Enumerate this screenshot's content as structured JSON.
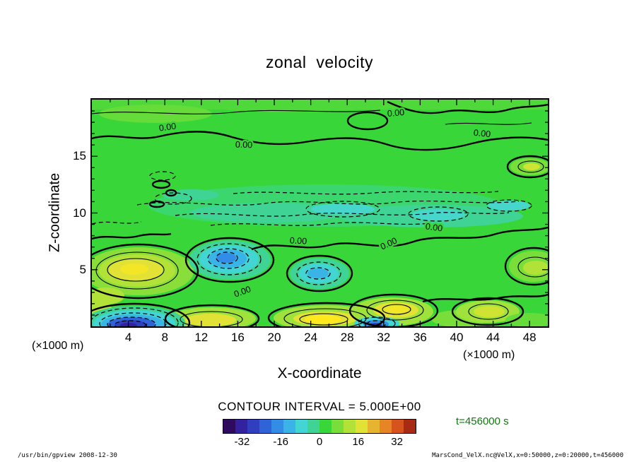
{
  "title": "zonal velocity",
  "plot": {
    "zero_label": "0.00"
  },
  "axes": {
    "x": {
      "label": "X-coordinate",
      "unit": "(×1000 m)",
      "ticks": [
        "4",
        "8",
        "12",
        "16",
        "20",
        "24",
        "28",
        "32",
        "36",
        "40",
        "44",
        "48"
      ]
    },
    "y": {
      "label": "Z-coordinate",
      "unit": "(×1000 m)",
      "ticks": [
        "5",
        "10",
        "15"
      ]
    }
  },
  "annotations": {
    "contour_interval": "CONTOUR INTERVAL = 5.000E+00",
    "time": "t=456000 s"
  },
  "colorbar": {
    "tick_labels": [
      "-32",
      "-16",
      "0",
      "16",
      "32"
    ],
    "min": -40,
    "max": 40,
    "colors": [
      "#2e0b5e",
      "#33219e",
      "#2f3fc0",
      "#2f63d8",
      "#338ce6",
      "#3ab4e6",
      "#43d4d4",
      "#3fd495",
      "#38d638",
      "#7ade3a",
      "#b2e238",
      "#e2e236",
      "#e6b42e",
      "#e68426",
      "#d6531d",
      "#a62a14"
    ]
  },
  "footer": {
    "left": "/usr/bin/gpview  2008-12-30",
    "right": "MarsCond_VelX.nc@VelX,x=0:50000,z=0:20000,t=456000"
  },
  "palette": {
    "g0": "#38d638",
    "g1": "#4ed83a",
    "g2": "#66dc3a",
    "g3": "#7ade3a",
    "g4": "#8ade3a",
    "g5": "#9fe23c",
    "g6": "#b2e238",
    "y1": "#cfe332",
    "y2": "#e2e236",
    "y3": "#f2e626",
    "y4": "#ffe81e",
    "t1": "#3bd66e",
    "t2": "#3fd495",
    "c1": "#46d6cc",
    "c2": "#43d4d4",
    "b1": "#3ab4e6",
    "b2": "#338ce6",
    "b3": "#2f63d8",
    "b4": "#2f3fc0",
    "b5": "#33219e"
  },
  "chart_data": {
    "type": "contour",
    "title": "zonal velocity",
    "xlabel": "X-coordinate",
    "ylabel": "Z-coordinate",
    "x_unit": "×1000 m",
    "z_unit": "×1000 m",
    "x_range": [
      0,
      50000
    ],
    "z_range": [
      0,
      20000
    ],
    "time_s": 456000,
    "contour_interval": 5.0,
    "colorbar_ticks": [
      -32,
      -16,
      0,
      16,
      32
    ],
    "x_km": [
      0,
      5,
      10,
      15,
      20,
      25,
      30,
      35,
      40,
      45,
      50
    ],
    "z_km": [
      0,
      2.5,
      5,
      7.5,
      10,
      12.5,
      15,
      17.5,
      20
    ],
    "values_rows_by_z": [
      [
        -25,
        -30,
        6,
        12,
        2,
        15,
        -8,
        -18,
        8,
        3,
        1
      ],
      [
        -8,
        10,
        4,
        9,
        1,
        8,
        6,
        -4,
        6,
        2,
        1
      ],
      [
        6,
        13,
        -2,
        -9,
        0,
        -8,
        2,
        9,
        4,
        8,
        2
      ],
      [
        2,
        4,
        0,
        -4,
        -2,
        -3,
        -3,
        2,
        1,
        2,
        2
      ],
      [
        1,
        -2,
        -4,
        -5,
        -6,
        -7,
        -5,
        -4,
        -6,
        -2,
        1
      ],
      [
        2,
        0,
        -2,
        -3,
        -4,
        -5,
        -4,
        -2,
        -1,
        4,
        2
      ],
      [
        3,
        2,
        1,
        0,
        -1,
        -2,
        -1,
        0,
        1,
        2,
        3
      ],
      [
        2,
        3,
        2,
        1,
        2,
        1,
        2,
        2,
        1,
        2,
        2
      ],
      [
        1,
        2,
        1,
        2,
        1,
        2,
        1,
        1,
        2,
        1,
        1
      ]
    ]
  }
}
